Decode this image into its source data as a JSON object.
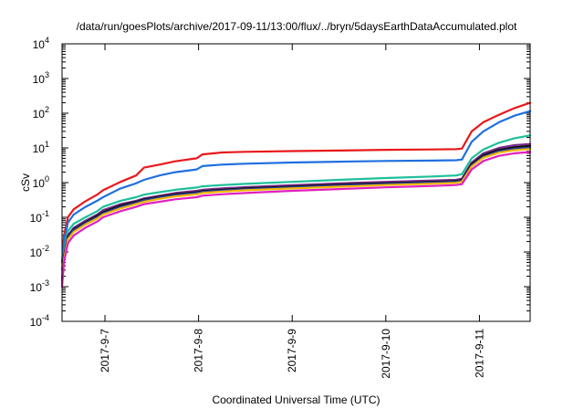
{
  "chart_data": {
    "type": "line",
    "title": "/data/run/goesPlots/archive/2017-09-11/13:00/flux/../bryn/5daysEarthDataAccumulated.plot",
    "xlabel": "Coordinated Universal Time (UTC)",
    "ylabel": "cSv",
    "y_scale": "log",
    "ylim": [
      0.0001,
      10000
    ],
    "y_ticks": [
      {
        "value": 0.0001,
        "base": "10",
        "exp": "-4"
      },
      {
        "value": 0.001,
        "base": "10",
        "exp": "-3"
      },
      {
        "value": 0.01,
        "base": "10",
        "exp": "-2"
      },
      {
        "value": 0.1,
        "base": "10",
        "exp": "-1"
      },
      {
        "value": 1,
        "base": "10",
        "exp": "0"
      },
      {
        "value": 10,
        "base": "10",
        "exp": "1"
      },
      {
        "value": 100,
        "base": "10",
        "exp": "2"
      },
      {
        "value": 1000,
        "base": "10",
        "exp": "3"
      },
      {
        "value": 10000,
        "base": "10",
        "exp": "4"
      }
    ],
    "xlim": [
      "2017-09-06 13:00",
      "2017-09-11 13:00"
    ],
    "x_ticks": [
      "2017-9-7",
      "2017-9-8",
      "2017-9-9",
      "2017-9-10",
      "2017-9-11"
    ],
    "x_tick_values": [
      "2017-09-07 00:00",
      "2017-09-08 00:00",
      "2017-09-09 00:00",
      "2017-09-10 00:00",
      "2017-09-11 00:00"
    ],
    "grid": false,
    "series": [
      {
        "color": "#e8191c",
        "x": [
          "2017-09-06 13:00",
          "2017-09-06 13:30",
          "2017-09-06 14:30",
          "2017-09-06 16:00",
          "2017-09-06 19:00",
          "2017-09-06 22:00",
          "2017-09-06 23:30",
          "2017-09-07 04:00",
          "2017-09-07 08:00",
          "2017-09-07 10:00",
          "2017-09-07 14:00",
          "2017-09-07 18:00",
          "2017-09-07 23:30",
          "2017-09-08 01:00",
          "2017-09-08 06:00",
          "2017-09-08 12:00",
          "2017-09-09 00:00",
          "2017-09-09 12:00",
          "2017-09-10 00:00",
          "2017-09-10 12:00",
          "2017-09-10 18:00",
          "2017-09-10 19:30",
          "2017-09-10 22:00",
          "2017-09-11 01:00",
          "2017-09-11 05:00",
          "2017-09-11 09:00",
          "2017-09-11 13:00"
        ],
        "values": [
          0.005,
          0.03,
          0.1,
          0.17,
          0.29,
          0.45,
          0.6,
          1.05,
          1.6,
          2.7,
          3.3,
          4.1,
          5,
          6.5,
          7.4,
          7.7,
          8.1,
          8.4,
          8.8,
          9,
          9.2,
          9.5,
          30,
          55,
          90,
          140,
          200
        ]
      },
      {
        "color": "#1f6fe0",
        "x": [
          "2017-09-06 13:00",
          "2017-09-06 13:30",
          "2017-09-06 14:30",
          "2017-09-06 16:00",
          "2017-09-06 19:00",
          "2017-09-06 22:00",
          "2017-09-06 23:30",
          "2017-09-07 04:00",
          "2017-09-07 08:00",
          "2017-09-07 10:00",
          "2017-09-07 14:00",
          "2017-09-07 18:00",
          "2017-09-07 23:30",
          "2017-09-08 01:00",
          "2017-09-08 06:00",
          "2017-09-08 12:00",
          "2017-09-09 00:00",
          "2017-09-09 12:00",
          "2017-09-10 00:00",
          "2017-09-10 12:00",
          "2017-09-10 18:00",
          "2017-09-10 19:30",
          "2017-09-10 22:00",
          "2017-09-11 01:00",
          "2017-09-11 05:00",
          "2017-09-11 09:00",
          "2017-09-11 13:00"
        ],
        "values": [
          0.003,
          0.02,
          0.07,
          0.12,
          0.2,
          0.3,
          0.38,
          0.68,
          0.95,
          1.2,
          1.6,
          2,
          2.4,
          3,
          3.3,
          3.5,
          3.8,
          4,
          4.2,
          4.3,
          4.4,
          4.6,
          15,
          30,
          55,
          85,
          115
        ]
      },
      {
        "color": "#1fbf9a",
        "x": [
          "2017-09-06 13:00",
          "2017-09-06 13:30",
          "2017-09-06 14:30",
          "2017-09-06 16:00",
          "2017-09-06 19:00",
          "2017-09-06 22:00",
          "2017-09-06 23:30",
          "2017-09-07 04:00",
          "2017-09-07 08:00",
          "2017-09-07 10:00",
          "2017-09-07 14:00",
          "2017-09-07 18:00",
          "2017-09-07 23:30",
          "2017-09-08 01:00",
          "2017-09-08 06:00",
          "2017-09-08 12:00",
          "2017-09-09 00:00",
          "2017-09-09 12:00",
          "2017-09-10 00:00",
          "2017-09-10 12:00",
          "2017-09-10 18:00",
          "2017-09-10 19:30",
          "2017-09-10 22:00",
          "2017-09-11 01:00",
          "2017-09-11 05:00",
          "2017-09-11 09:00",
          "2017-09-11 13:00"
        ],
        "values": [
          0.002,
          0.01,
          0.04,
          0.065,
          0.1,
          0.15,
          0.2,
          0.3,
          0.38,
          0.45,
          0.53,
          0.62,
          0.72,
          0.78,
          0.85,
          0.92,
          1.05,
          1.2,
          1.35,
          1.5,
          1.6,
          1.75,
          5,
          9,
          14,
          19,
          23
        ]
      },
      {
        "color": "#7b2c8c",
        "x": [
          "2017-09-06 13:00",
          "2017-09-06 13:30",
          "2017-09-06 14:30",
          "2017-09-06 16:00",
          "2017-09-06 19:00",
          "2017-09-06 22:00",
          "2017-09-06 23:30",
          "2017-09-07 04:00",
          "2017-09-07 08:00",
          "2017-09-07 10:00",
          "2017-09-07 14:00",
          "2017-09-07 18:00",
          "2017-09-07 23:30",
          "2017-09-08 01:00",
          "2017-09-08 06:00",
          "2017-09-08 12:00",
          "2017-09-09 00:00",
          "2017-09-09 12:00",
          "2017-09-10 00:00",
          "2017-09-10 12:00",
          "2017-09-10 18:00",
          "2017-09-10 19:30",
          "2017-09-10 22:00",
          "2017-09-11 01:00",
          "2017-09-11 05:00",
          "2017-09-11 09:00",
          "2017-09-11 13:00"
        ],
        "values": [
          0.0015,
          0.008,
          0.03,
          0.05,
          0.08,
          0.12,
          0.16,
          0.24,
          0.3,
          0.35,
          0.42,
          0.5,
          0.58,
          0.62,
          0.68,
          0.74,
          0.84,
          0.95,
          1.05,
          1.15,
          1.2,
          1.3,
          3.8,
          7,
          10,
          12,
          13
        ]
      },
      {
        "color": "#111111",
        "x": [
          "2017-09-06 13:00",
          "2017-09-06 13:30",
          "2017-09-06 14:30",
          "2017-09-06 16:00",
          "2017-09-06 19:00",
          "2017-09-06 22:00",
          "2017-09-06 23:30",
          "2017-09-07 04:00",
          "2017-09-07 08:00",
          "2017-09-07 10:00",
          "2017-09-07 14:00",
          "2017-09-07 18:00",
          "2017-09-07 23:30",
          "2017-09-08 01:00",
          "2017-09-08 06:00",
          "2017-09-08 12:00",
          "2017-09-09 00:00",
          "2017-09-09 12:00",
          "2017-09-10 00:00",
          "2017-09-10 12:00",
          "2017-09-10 18:00",
          "2017-09-10 19:30",
          "2017-09-10 22:00",
          "2017-09-11 01:00",
          "2017-09-11 05:00",
          "2017-09-11 09:00",
          "2017-09-11 13:00"
        ],
        "values": [
          0.0013,
          0.007,
          0.027,
          0.045,
          0.072,
          0.11,
          0.14,
          0.22,
          0.28,
          0.33,
          0.39,
          0.46,
          0.53,
          0.57,
          0.62,
          0.68,
          0.77,
          0.87,
          0.96,
          1.05,
          1.1,
          1.2,
          3.4,
          6.2,
          8.8,
          10.5,
          11.5
        ]
      },
      {
        "color": "#2a3f9e",
        "x": [
          "2017-09-06 13:00",
          "2017-09-06 13:30",
          "2017-09-06 14:30",
          "2017-09-06 16:00",
          "2017-09-06 19:00",
          "2017-09-06 22:00",
          "2017-09-06 23:30",
          "2017-09-07 04:00",
          "2017-09-07 08:00",
          "2017-09-07 10:00",
          "2017-09-07 14:00",
          "2017-09-07 18:00",
          "2017-09-07 23:30",
          "2017-09-08 01:00",
          "2017-09-08 06:00",
          "2017-09-08 12:00",
          "2017-09-09 00:00",
          "2017-09-09 12:00",
          "2017-09-10 00:00",
          "2017-09-10 12:00",
          "2017-09-10 18:00",
          "2017-09-10 19:30",
          "2017-09-10 22:00",
          "2017-09-11 01:00",
          "2017-09-11 05:00",
          "2017-09-11 09:00",
          "2017-09-11 13:00"
        ],
        "values": [
          0.0012,
          0.0065,
          0.025,
          0.042,
          0.068,
          0.1,
          0.13,
          0.2,
          0.26,
          0.31,
          0.37,
          0.43,
          0.5,
          0.54,
          0.59,
          0.64,
          0.73,
          0.82,
          0.91,
          1,
          1.05,
          1.12,
          3.1,
          5.6,
          8,
          9.4,
          10.2
        ]
      },
      {
        "color": "#f2b705",
        "x": [
          "2017-09-06 13:00",
          "2017-09-06 13:30",
          "2017-09-06 14:30",
          "2017-09-06 16:00",
          "2017-09-06 19:00",
          "2017-09-06 22:00",
          "2017-09-06 23:30",
          "2017-09-07 04:00",
          "2017-09-07 08:00",
          "2017-09-07 10:00",
          "2017-09-07 14:00",
          "2017-09-07 18:00",
          "2017-09-07 23:30",
          "2017-09-08 01:00",
          "2017-09-08 06:00",
          "2017-09-08 12:00",
          "2017-09-09 00:00",
          "2017-09-09 12:00",
          "2017-09-10 00:00",
          "2017-09-10 12:00",
          "2017-09-10 18:00",
          "2017-09-10 19:30",
          "2017-09-10 22:00",
          "2017-09-11 01:00",
          "2017-09-11 05:00",
          "2017-09-11 09:00",
          "2017-09-11 13:00"
        ],
        "values": [
          0.0011,
          0.006,
          0.023,
          0.038,
          0.062,
          0.092,
          0.12,
          0.18,
          0.24,
          0.28,
          0.34,
          0.4,
          0.46,
          0.5,
          0.55,
          0.6,
          0.68,
          0.76,
          0.85,
          0.93,
          0.98,
          1.05,
          2.9,
          5.2,
          7.3,
          8.6,
          9.3
        ]
      },
      {
        "color": "#e020c0",
        "x": [
          "2017-09-06 13:00",
          "2017-09-06 13:30",
          "2017-09-06 14:30",
          "2017-09-06 16:00",
          "2017-09-06 19:00",
          "2017-09-06 22:00",
          "2017-09-06 23:30",
          "2017-09-07 04:00",
          "2017-09-07 08:00",
          "2017-09-07 10:00",
          "2017-09-07 14:00",
          "2017-09-07 18:00",
          "2017-09-07 23:30",
          "2017-09-08 01:00",
          "2017-09-08 06:00",
          "2017-09-08 12:00",
          "2017-09-09 00:00",
          "2017-09-09 12:00",
          "2017-09-10 00:00",
          "2017-09-10 12:00",
          "2017-09-10 18:00",
          "2017-09-10 19:30",
          "2017-09-10 22:00",
          "2017-09-11 01:00",
          "2017-09-11 05:00",
          "2017-09-11 09:00",
          "2017-09-11 13:00"
        ],
        "values": [
          0.001,
          0.005,
          0.018,
          0.03,
          0.05,
          0.075,
          0.1,
          0.15,
          0.2,
          0.24,
          0.28,
          0.33,
          0.38,
          0.42,
          0.46,
          0.5,
          0.58,
          0.65,
          0.73,
          0.8,
          0.85,
          0.9,
          2.4,
          4.2,
          5.9,
          7,
          7.6
        ]
      }
    ]
  }
}
